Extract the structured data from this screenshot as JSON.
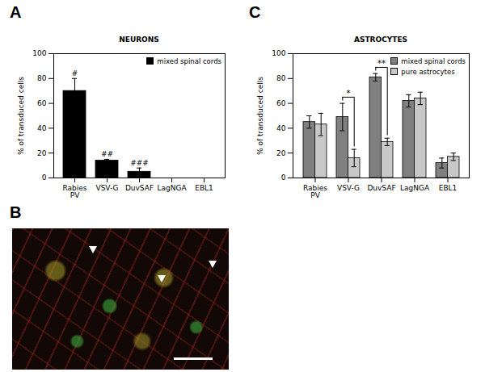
{
  "chart_data": [
    {
      "panel": "A",
      "type": "bar",
      "title": "NEURONS",
      "categories": [
        "Rabies\nPV",
        "VSV-G",
        "DuvSAF",
        "LagNGA",
        "EBL1"
      ],
      "series": [
        {
          "name": "mixed spinal cords",
          "color": "#000000",
          "values": [
            70,
            14,
            5,
            0,
            0
          ],
          "errors": [
            10,
            1,
            3,
            null,
            null
          ]
        }
      ],
      "y_label": "% of transduced cells",
      "ylim": [
        0,
        100
      ],
      "yticks": [
        0,
        20,
        40,
        60,
        80,
        100
      ],
      "legend": "top-right",
      "annotations": [
        {
          "category": "Rabies\nPV",
          "text": "#"
        },
        {
          "category": "VSV-G",
          "text": "##"
        },
        {
          "category": "DuvSAF",
          "text": "###"
        }
      ]
    },
    {
      "panel": "C",
      "type": "bar",
      "title": "ASTROCYTES",
      "categories": [
        "Rabies\nPV",
        "VSV-G",
        "DuvSAF",
        "LagNGA",
        "EBL1"
      ],
      "series": [
        {
          "name": "mixed spinal cords",
          "color": "#808080",
          "values": [
            45,
            49,
            81,
            62,
            12
          ],
          "errors": [
            5,
            11,
            3,
            5,
            4
          ]
        },
        {
          "name": "pure astrocytes",
          "color": "#c8c8c8",
          "values": [
            43,
            16,
            29,
            64,
            17
          ],
          "errors": [
            9,
            7,
            3,
            5,
            3
          ]
        }
      ],
      "y_label": "% of transduced cells",
      "ylim": [
        0,
        100
      ],
      "yticks": [
        0,
        20,
        40,
        60,
        80,
        100
      ],
      "legend": "top-right",
      "annotations": [
        {
          "category": "VSV-G",
          "text": "*"
        },
        {
          "category": "DuvSAF",
          "text": "**"
        }
      ]
    }
  ],
  "image_panel": {
    "panel": "B"
  }
}
